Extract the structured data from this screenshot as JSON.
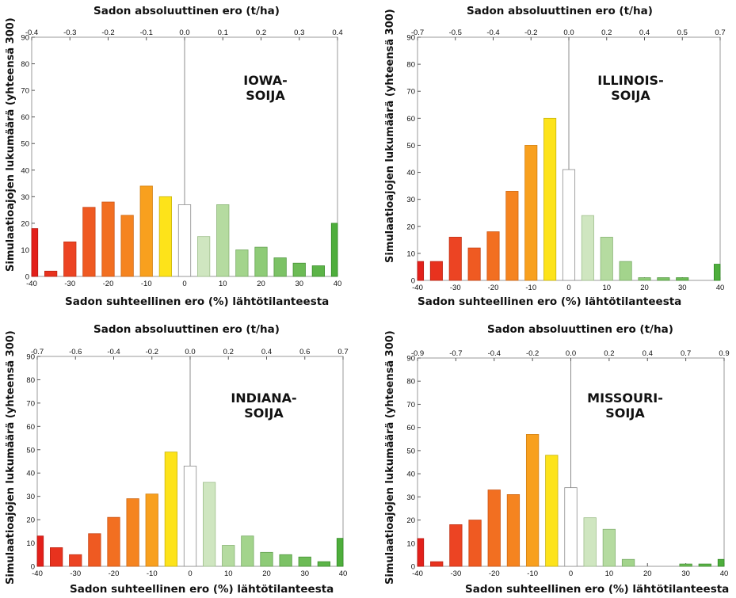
{
  "chart_data": [
    {
      "type": "bar",
      "state_label": [
        "IOWA-",
        "SOIJA"
      ],
      "xlabel": "Sadon suhteellinen ero (%) lähtötilanteesta",
      "xlabel_top": "Sadon absoluuttinen ero (t/ha)",
      "ylabel": "Simulaatioajojen lukumäärä (yhteensä 300)",
      "xlim": [
        -40,
        40
      ],
      "ylim": [
        0,
        90
      ],
      "x_ticks": [
        "-40",
        "-30",
        "-20",
        "-10",
        "0",
        "10",
        "20",
        "30",
        "40"
      ],
      "y_ticks": [
        "0",
        "10",
        "20",
        "30",
        "40",
        "50",
        "60",
        "70",
        "80",
        "90"
      ],
      "top_ticks": [
        "-0.4",
        "-0.3",
        "-0.2",
        "-0.1",
        "0.0",
        "0.1",
        "0.2",
        "0.3",
        "0.4"
      ],
      "x": [
        -40,
        -35,
        -30,
        -25,
        -20,
        -15,
        -10,
        -5,
        0,
        5,
        10,
        15,
        20,
        25,
        30,
        35,
        40
      ],
      "values": [
        18,
        2,
        13,
        26,
        28,
        23,
        34,
        30,
        27,
        15,
        27,
        10,
        11,
        7,
        5,
        4,
        20
      ]
    },
    {
      "type": "bar",
      "state_label": [
        "ILLINOIS-",
        "SOIJA"
      ],
      "xlabel": "Sadon suhteellinen ero (%) lähtötilanteesta",
      "xlabel_top": "Sadon absoluuttinen ero (t/ha)",
      "ylabel": "Simulaatioajojen lukumäärä (yhteensä 300)",
      "xlim": [
        -40,
        40
      ],
      "ylim": [
        0,
        90
      ],
      "x_ticks": [
        "-40",
        "-30",
        "-20",
        "-10",
        "0",
        "10",
        "20",
        "30",
        "40"
      ],
      "y_ticks": [
        "0",
        "10",
        "20",
        "30",
        "40",
        "50",
        "60",
        "70",
        "80",
        "90"
      ],
      "top_ticks": [
        "-0.7",
        "-0.5",
        "-0.4",
        "-0.2",
        "0.0",
        "0.2",
        "0.4",
        "0.5",
        "0.7"
      ],
      "x": [
        -40,
        -35,
        -30,
        -25,
        -20,
        -15,
        -10,
        -5,
        0,
        5,
        10,
        15,
        20,
        25,
        30,
        35,
        40
      ],
      "values": [
        7,
        7,
        16,
        12,
        18,
        33,
        50,
        60,
        41,
        24,
        16,
        7,
        1,
        1,
        1,
        0,
        6
      ]
    },
    {
      "type": "bar",
      "state_label": [
        "INDIANA-",
        "SOIJA"
      ],
      "xlabel": "Sadon suhteellinen ero (%) lähtötilanteesta",
      "xlabel_top": "Sadon absoluuttinen ero (t/ha)",
      "ylabel": "Simulaatioajojen lukumäärä (yhteensä 300)",
      "xlim": [
        -40,
        40
      ],
      "ylim": [
        0,
        90
      ],
      "x_ticks": [
        "-40",
        "-30",
        "-20",
        "-10",
        "0",
        "10",
        "20",
        "30",
        "40"
      ],
      "y_ticks": [
        "0",
        "10",
        "20",
        "30",
        "40",
        "50",
        "60",
        "70",
        "80",
        "90"
      ],
      "top_ticks": [
        "-0.7",
        "-0.6",
        "-0.4",
        "-0.2",
        "0.0",
        "0.2",
        "0.4",
        "0.6",
        "0.7"
      ],
      "x": [
        -40,
        -35,
        -30,
        -25,
        -20,
        -15,
        -10,
        -5,
        0,
        5,
        10,
        15,
        20,
        25,
        30,
        35,
        40
      ],
      "values": [
        13,
        8,
        5,
        14,
        21,
        29,
        31,
        49,
        43,
        36,
        9,
        13,
        6,
        5,
        4,
        2,
        12
      ]
    },
    {
      "type": "bar",
      "state_label": [
        "MISSOURI-",
        "SOIJA"
      ],
      "xlabel": "Sadon suhteellinen ero (%) lähtötilanteesta",
      "xlabel_top": "Sadon absoluuttinen ero (t/ha)",
      "ylabel": "Simulaatioajojen lukumäärä (yhteensä 300)",
      "xlim": [
        -40,
        40
      ],
      "ylim": [
        0,
        90
      ],
      "x_ticks": [
        "-40",
        "-30",
        "-20",
        "-10",
        "0",
        "10",
        "20",
        "30",
        "40"
      ],
      "y_ticks": [
        "0",
        "10",
        "20",
        "30",
        "40",
        "50",
        "60",
        "70",
        "80",
        "90"
      ],
      "top_ticks": [
        "-0.9",
        "-0.7",
        "-0.4",
        "-0.2",
        "0.0",
        "0.2",
        "0.4",
        "0.7",
        "0.9"
      ],
      "x": [
        -40,
        -35,
        -30,
        -25,
        -20,
        -15,
        -10,
        -5,
        0,
        5,
        10,
        15,
        20,
        25,
        30,
        35,
        40
      ],
      "values": [
        12,
        2,
        18,
        20,
        33,
        31,
        57,
        48,
        34,
        21,
        16,
        3,
        0,
        0,
        1,
        1,
        3
      ]
    }
  ],
  "colors": {
    "bar_fill": [
      "#e3201b",
      "#e8321e",
      "#ec4423",
      "#ef5a22",
      "#f26f21",
      "#f58420",
      "#f8a01e",
      "#fde31a",
      "#ffffff",
      "#cfe6c0",
      "#b5dba0",
      "#a3d48c",
      "#8ecb77",
      "#7cc266",
      "#6cbb55",
      "#5cb448",
      "#4eae3c"
    ],
    "bar_stroke": [
      "#b81810",
      "#bd2412",
      "#c23216",
      "#c84515",
      "#cc5615",
      "#cf6814",
      "#d27f12",
      "#c8b40e",
      "#8c8c8c",
      "#9fbf8c",
      "#89b476",
      "#78ab66",
      "#66a254",
      "#559a44",
      "#489437",
      "#3c8e2d",
      "#318a24"
    ],
    "frame": "#9a9a9a",
    "zero_line": "#8c8c8c"
  }
}
